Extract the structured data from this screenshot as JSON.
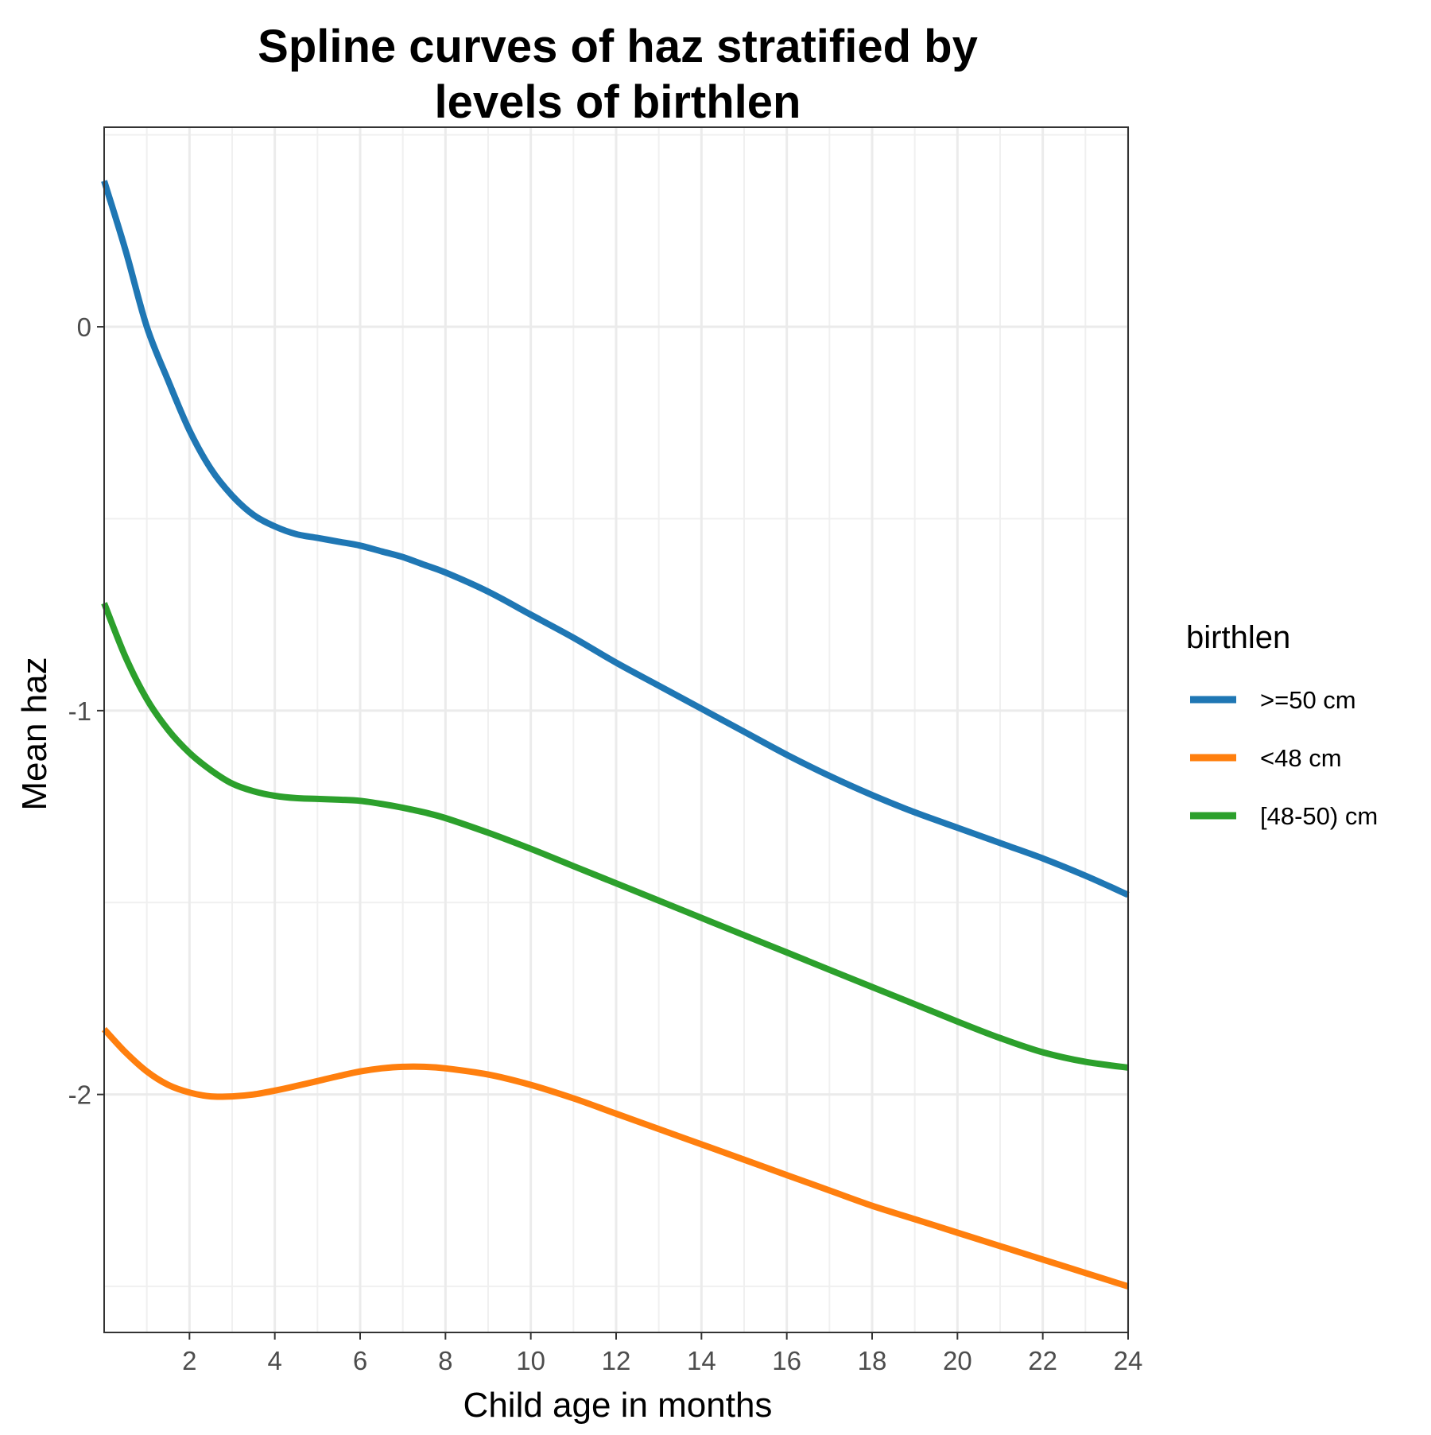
{
  "chart_data": {
    "type": "line",
    "title_lines": [
      "Spline curves of haz stratified by",
      "levels of birthlen"
    ],
    "xlabel": "Child age in months",
    "ylabel": "Mean haz",
    "xlim": [
      0,
      24
    ],
    "ylim": [
      -2.62,
      0.52
    ],
    "x_ticks": [
      2,
      4,
      6,
      8,
      10,
      12,
      14,
      16,
      18,
      20,
      22,
      24
    ],
    "y_ticks": [
      0,
      -1,
      -2
    ],
    "y_tick_labels": [
      "0",
      "-1",
      "-2"
    ],
    "grid": true,
    "legend": {
      "title": "birthlen",
      "position": "right"
    },
    "series": [
      {
        "name": ">=50 cm",
        "color": "#1f77b4",
        "x": [
          0,
          0.5,
          1,
          1.5,
          2,
          2.5,
          3,
          3.5,
          4,
          4.5,
          5,
          5.5,
          6,
          6.5,
          7,
          7.5,
          8,
          9,
          10,
          11,
          12,
          13,
          14,
          15,
          16,
          17,
          18,
          19,
          20,
          21,
          22,
          23,
          24
        ],
        "y": [
          0.38,
          0.2,
          0.0,
          -0.14,
          -0.27,
          -0.37,
          -0.44,
          -0.49,
          -0.52,
          -0.54,
          -0.55,
          -0.56,
          -0.57,
          -0.585,
          -0.6,
          -0.62,
          -0.64,
          -0.69,
          -0.75,
          -0.81,
          -0.875,
          -0.935,
          -0.995,
          -1.055,
          -1.115,
          -1.17,
          -1.22,
          -1.265,
          -1.305,
          -1.345,
          -1.385,
          -1.43,
          -1.48
        ]
      },
      {
        "name": "<48 cm",
        "color": "#ff7f0e",
        "x": [
          0,
          0.5,
          1,
          1.5,
          2,
          2.5,
          3,
          3.5,
          4,
          4.5,
          5,
          5.5,
          6,
          6.5,
          7,
          7.5,
          8,
          9,
          10,
          11,
          12,
          13,
          14,
          15,
          16,
          17,
          18,
          19,
          20,
          21,
          22,
          23,
          24
        ],
        "y": [
          -1.83,
          -1.89,
          -1.94,
          -1.975,
          -1.995,
          -2.005,
          -2.005,
          -2.0,
          -1.99,
          -1.978,
          -1.965,
          -1.952,
          -1.94,
          -1.932,
          -1.928,
          -1.928,
          -1.932,
          -1.948,
          -1.975,
          -2.01,
          -2.05,
          -2.09,
          -2.13,
          -2.17,
          -2.21,
          -2.25,
          -2.29,
          -2.325,
          -2.36,
          -2.395,
          -2.43,
          -2.465,
          -2.5
        ]
      },
      {
        "name": "[48-50) cm",
        "color": "#2ca02c",
        "x": [
          0,
          0.5,
          1,
          1.5,
          2,
          2.5,
          3,
          3.5,
          4,
          4.5,
          5,
          5.5,
          6,
          6.5,
          7,
          7.5,
          8,
          9,
          10,
          11,
          12,
          13,
          14,
          15,
          16,
          17,
          18,
          19,
          20,
          21,
          22,
          23,
          24
        ],
        "y": [
          -0.72,
          -0.86,
          -0.97,
          -1.05,
          -1.11,
          -1.155,
          -1.19,
          -1.21,
          -1.222,
          -1.228,
          -1.23,
          -1.232,
          -1.235,
          -1.243,
          -1.253,
          -1.265,
          -1.28,
          -1.318,
          -1.36,
          -1.405,
          -1.45,
          -1.495,
          -1.54,
          -1.585,
          -1.63,
          -1.675,
          -1.72,
          -1.765,
          -1.81,
          -1.853,
          -1.89,
          -1.915,
          -1.93
        ]
      }
    ]
  }
}
